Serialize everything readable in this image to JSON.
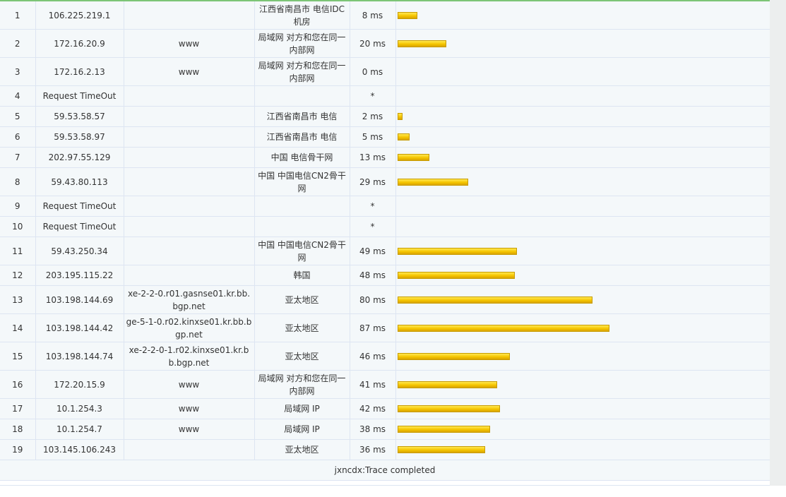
{
  "footer_text": "jxncdx:Trace completed",
  "bar_color": "#f5c500",
  "rows": [
    {
      "hop": "1",
      "ip": "106.225.219.1",
      "host": "",
      "location": "江西省南昌市 电信IDC机房",
      "time": "8 ms",
      "ms": 8
    },
    {
      "hop": "2",
      "ip": "172.16.20.9",
      "host": "www",
      "location": "局域网 对方和您在同一内部网",
      "time": "20 ms",
      "ms": 20
    },
    {
      "hop": "3",
      "ip": "172.16.2.13",
      "host": "www",
      "location": "局域网 对方和您在同一内部网",
      "time": "0 ms",
      "ms": 0
    },
    {
      "hop": "4",
      "ip": "Request TimeOut",
      "host": "",
      "location": "",
      "time": "*",
      "ms": 0
    },
    {
      "hop": "5",
      "ip": "59.53.58.57",
      "host": "",
      "location": "江西省南昌市 电信",
      "time": "2 ms",
      "ms": 2
    },
    {
      "hop": "6",
      "ip": "59.53.58.97",
      "host": "",
      "location": "江西省南昌市 电信",
      "time": "5 ms",
      "ms": 5
    },
    {
      "hop": "7",
      "ip": "202.97.55.129",
      "host": "",
      "location": "中国 电信骨干网",
      "time": "13 ms",
      "ms": 13
    },
    {
      "hop": "8",
      "ip": "59.43.80.113",
      "host": "",
      "location": "中国 中国电信CN2骨干网",
      "time": "29 ms",
      "ms": 29
    },
    {
      "hop": "9",
      "ip": "Request TimeOut",
      "host": "",
      "location": "",
      "time": "*",
      "ms": 0
    },
    {
      "hop": "10",
      "ip": "Request TimeOut",
      "host": "",
      "location": "",
      "time": "*",
      "ms": 0
    },
    {
      "hop": "11",
      "ip": "59.43.250.34",
      "host": "",
      "location": "中国 中国电信CN2骨干网",
      "time": "49 ms",
      "ms": 49
    },
    {
      "hop": "12",
      "ip": "203.195.115.22",
      "host": "",
      "location": "韩国",
      "time": "48 ms",
      "ms": 48
    },
    {
      "hop": "13",
      "ip": "103.198.144.69",
      "host": "xe-2-2-0.r01.gasnse01.kr.bb.bgp.net",
      "location": "亚太地区",
      "time": "80 ms",
      "ms": 80
    },
    {
      "hop": "14",
      "ip": "103.198.144.42",
      "host": "ge-5-1-0.r02.kinxse01.kr.bb.bgp.net",
      "location": "亚太地区",
      "time": "87 ms",
      "ms": 87
    },
    {
      "hop": "15",
      "ip": "103.198.144.74",
      "host": "xe-2-2-0-1.r02.kinxse01.kr.bb.bgp.net",
      "location": "亚太地区",
      "time": "46 ms",
      "ms": 46
    },
    {
      "hop": "16",
      "ip": "172.20.15.9",
      "host": "www",
      "location": "局域网 对方和您在同一内部网",
      "time": "41 ms",
      "ms": 41
    },
    {
      "hop": "17",
      "ip": "10.1.254.3",
      "host": "www",
      "location": "局域网 IP",
      "time": "42 ms",
      "ms": 42
    },
    {
      "hop": "18",
      "ip": "10.1.254.7",
      "host": "www",
      "location": "局域网 IP",
      "time": "38 ms",
      "ms": 38
    },
    {
      "hop": "19",
      "ip": "103.145.106.243",
      "host": "",
      "location": "亚太地区",
      "time": "36 ms",
      "ms": 36
    }
  ]
}
